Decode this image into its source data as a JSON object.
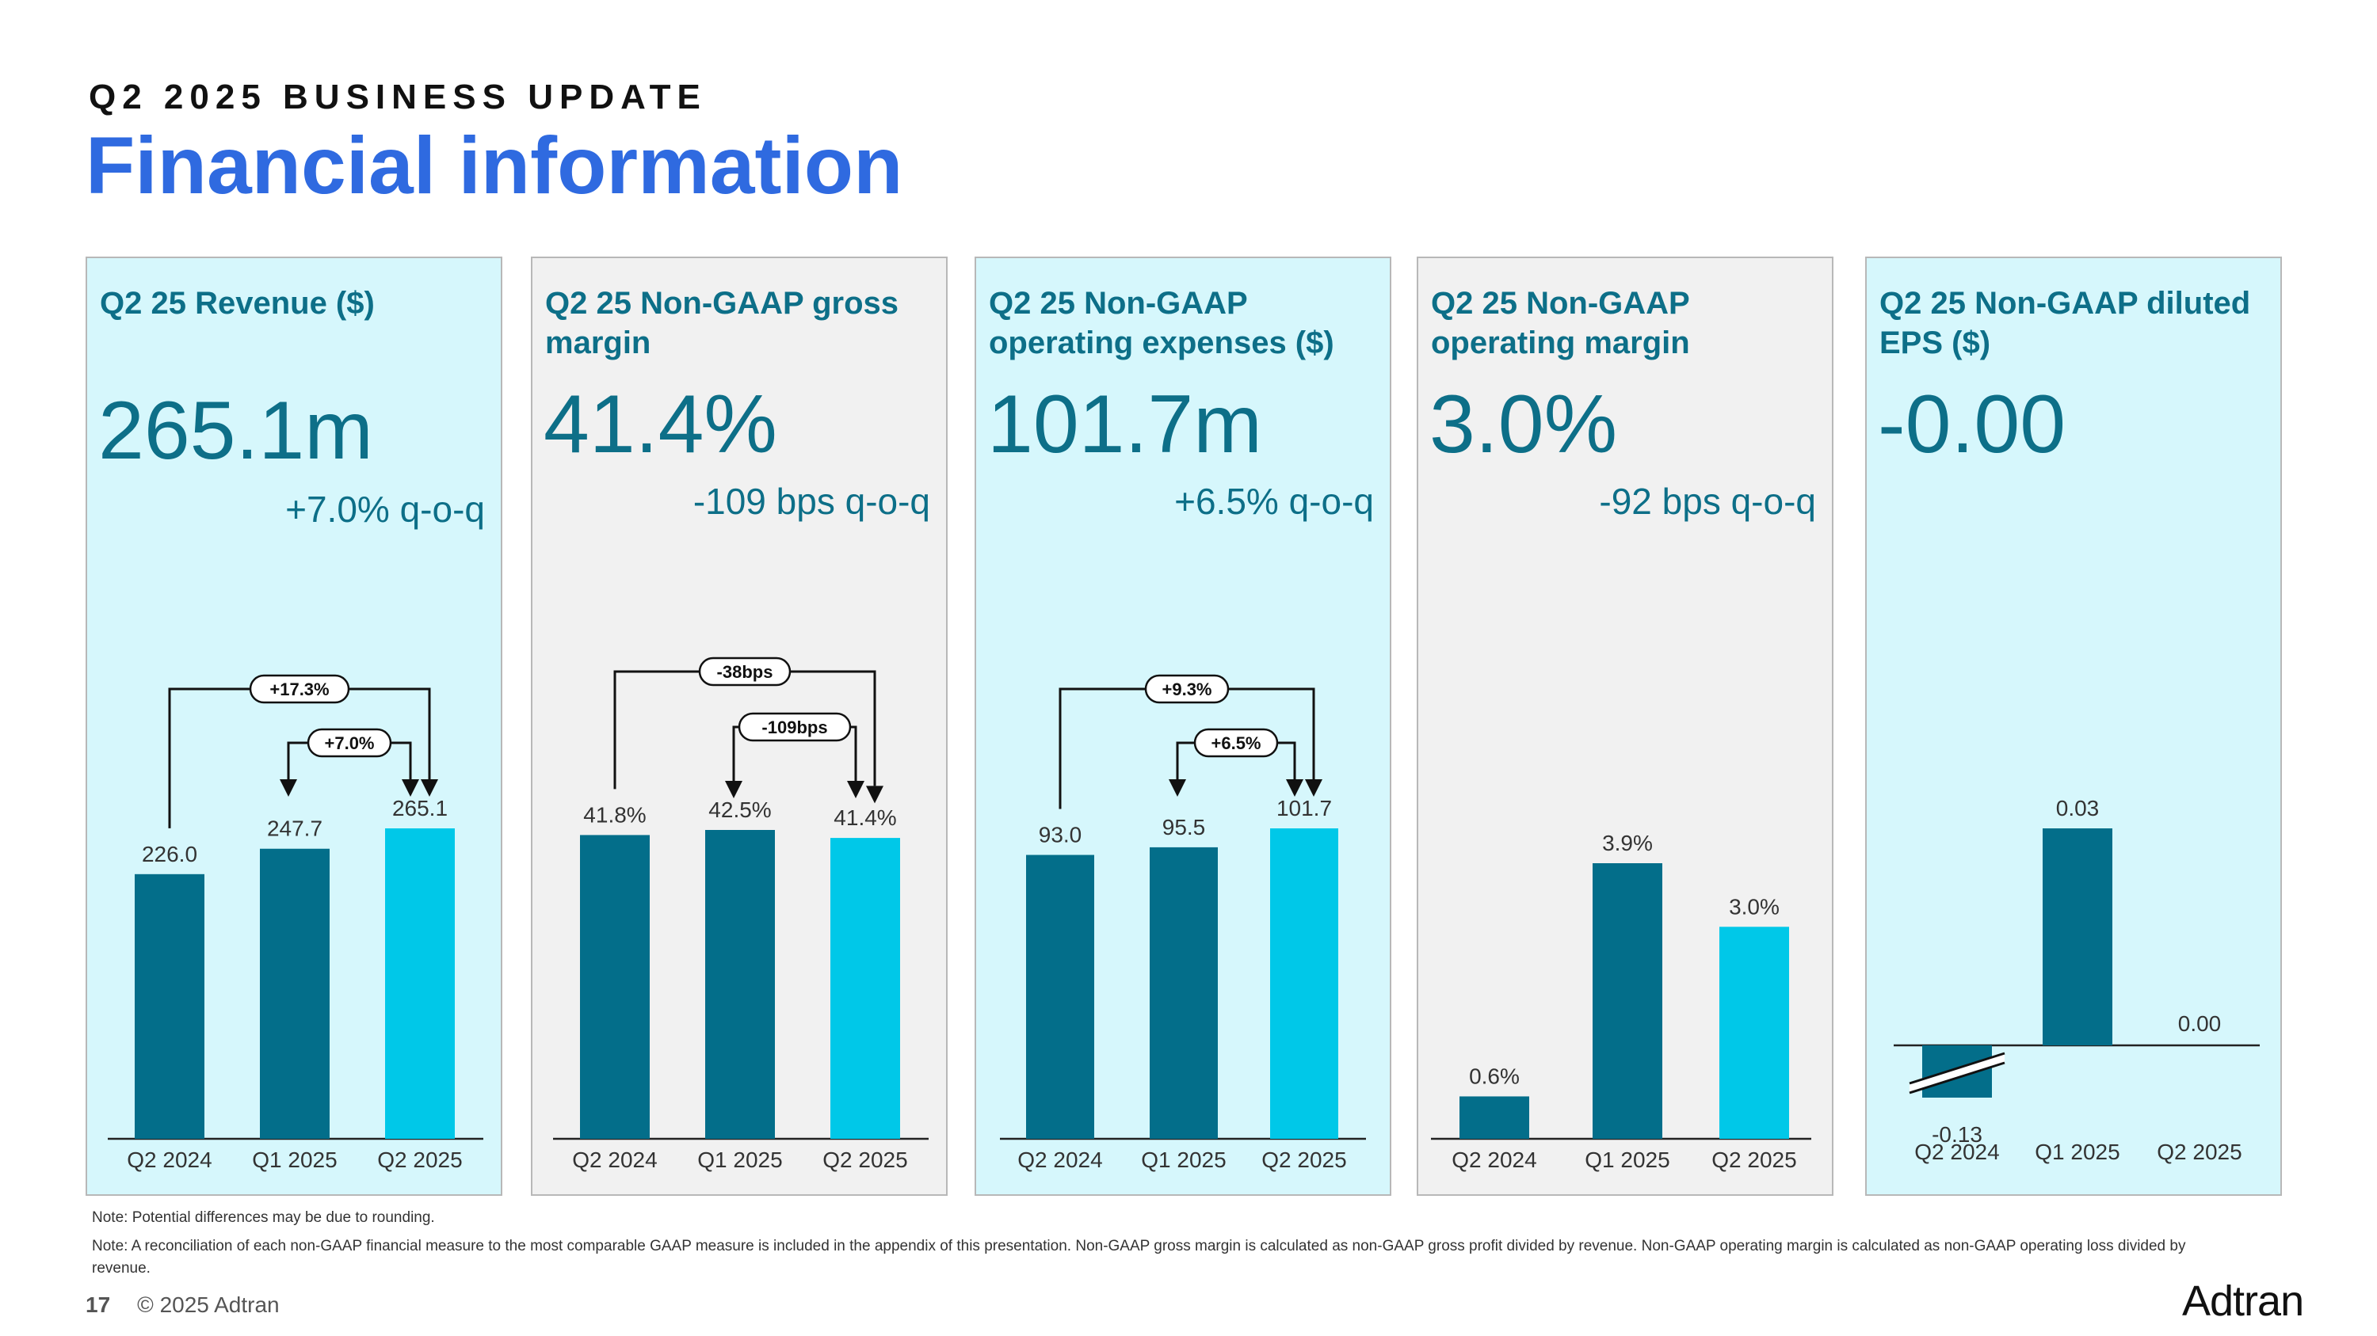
{
  "header": {
    "kicker": "Q2 2025 BUSINESS UPDATE",
    "title": "Financial information"
  },
  "panels": [
    {
      "title": "Q2 25 Revenue ($)",
      "value": "265.1m",
      "change": "+7.0% q-o-q"
    },
    {
      "title": "Q2 25 Non-GAAP gross margin",
      "value": "41.4%",
      "change": "-109 bps q-o-q"
    },
    {
      "title": "Q2 25 Non-GAAP operating expenses ($)",
      "value": "101.7m",
      "change": "+6.5% q-o-q"
    },
    {
      "title": "Q2 25 Non-GAAP operating margin",
      "value": "3.0%",
      "change": "-92 bps q-o-q"
    },
    {
      "title": "Q2 25 Non-GAAP diluted EPS ($)",
      "value": "-0.00",
      "change": ""
    }
  ],
  "chart_data": [
    {
      "type": "bar",
      "title": "Q2 25 Revenue ($)",
      "categories": [
        "Q2 2024",
        "Q1 2025",
        "Q2 2025"
      ],
      "values": [
        226.0,
        247.7,
        265.1
      ],
      "labels": [
        "226.0",
        "247.7",
        "265.1"
      ],
      "annotations": [
        {
          "from": "Q2 2024",
          "to": "Q2 2025",
          "label": "+17.3%"
        },
        {
          "from": "Q1 2025",
          "to": "Q2 2025",
          "label": "+7.0%"
        }
      ]
    },
    {
      "type": "bar",
      "title": "Q2 25 Non-GAAP gross margin",
      "categories": [
        "Q2 2024",
        "Q1 2025",
        "Q2 2025"
      ],
      "values": [
        41.8,
        42.5,
        41.4
      ],
      "labels": [
        "41.8%",
        "42.5%",
        "41.4%"
      ],
      "annotations": [
        {
          "from": "Q2 2024",
          "to": "Q2 2025",
          "label": "-38bps"
        },
        {
          "from": "Q1 2025",
          "to": "Q2 2025",
          "label": "-109bps"
        }
      ]
    },
    {
      "type": "bar",
      "title": "Q2 25 Non-GAAP operating expenses ($)",
      "categories": [
        "Q2 2024",
        "Q1 2025",
        "Q2 2025"
      ],
      "values": [
        93.0,
        95.5,
        101.7
      ],
      "labels": [
        "93.0",
        "95.5",
        "101.7"
      ],
      "annotations": [
        {
          "from": "Q2 2024",
          "to": "Q2 2025",
          "label": "+9.3%"
        },
        {
          "from": "Q1 2025",
          "to": "Q2 2025",
          "label": "+6.5%"
        }
      ]
    },
    {
      "type": "bar",
      "title": "Q2 25 Non-GAAP operating margin",
      "categories": [
        "Q2 2024",
        "Q1 2025",
        "Q2 2025"
      ],
      "values": [
        0.6,
        3.9,
        3.0
      ],
      "labels": [
        "0.6%",
        "3.9%",
        "3.0%"
      ],
      "annotations": []
    },
    {
      "type": "bar",
      "title": "Q2 25 Non-GAAP diluted EPS ($)",
      "categories": [
        "Q2 2024",
        "Q1 2025",
        "Q2 2025"
      ],
      "values": [
        -0.13,
        0.03,
        0.0
      ],
      "labels": [
        "-0.13",
        "0.03",
        "0.00"
      ],
      "annotations": [],
      "axis_break_on": "Q2 2024"
    }
  ],
  "notes": {
    "rounding": "Note: Potential differences may be due to rounding.",
    "reconciliation": "Note: A reconciliation of each non-GAAP financial measure to the most comparable GAAP measure is included in the appendix of this presentation. Non-GAAP gross margin is calculated   as non-GAAP gross profit divided by revenue. Non-GAAP operating margin is calculated as non-GAAP operating loss divided by revenue."
  },
  "footer": {
    "page": "17",
    "copyright": "© 2025 Adtran"
  },
  "logo": "Adtran",
  "colors": {
    "accent_title": "#2f6ae0",
    "teal_text": "#0d6f88",
    "bar_dark": "#036e8a",
    "bar_bright": "#00c8e8",
    "panel_cyan": "#d6f7fc",
    "panel_gray": "#f1f1f1"
  }
}
